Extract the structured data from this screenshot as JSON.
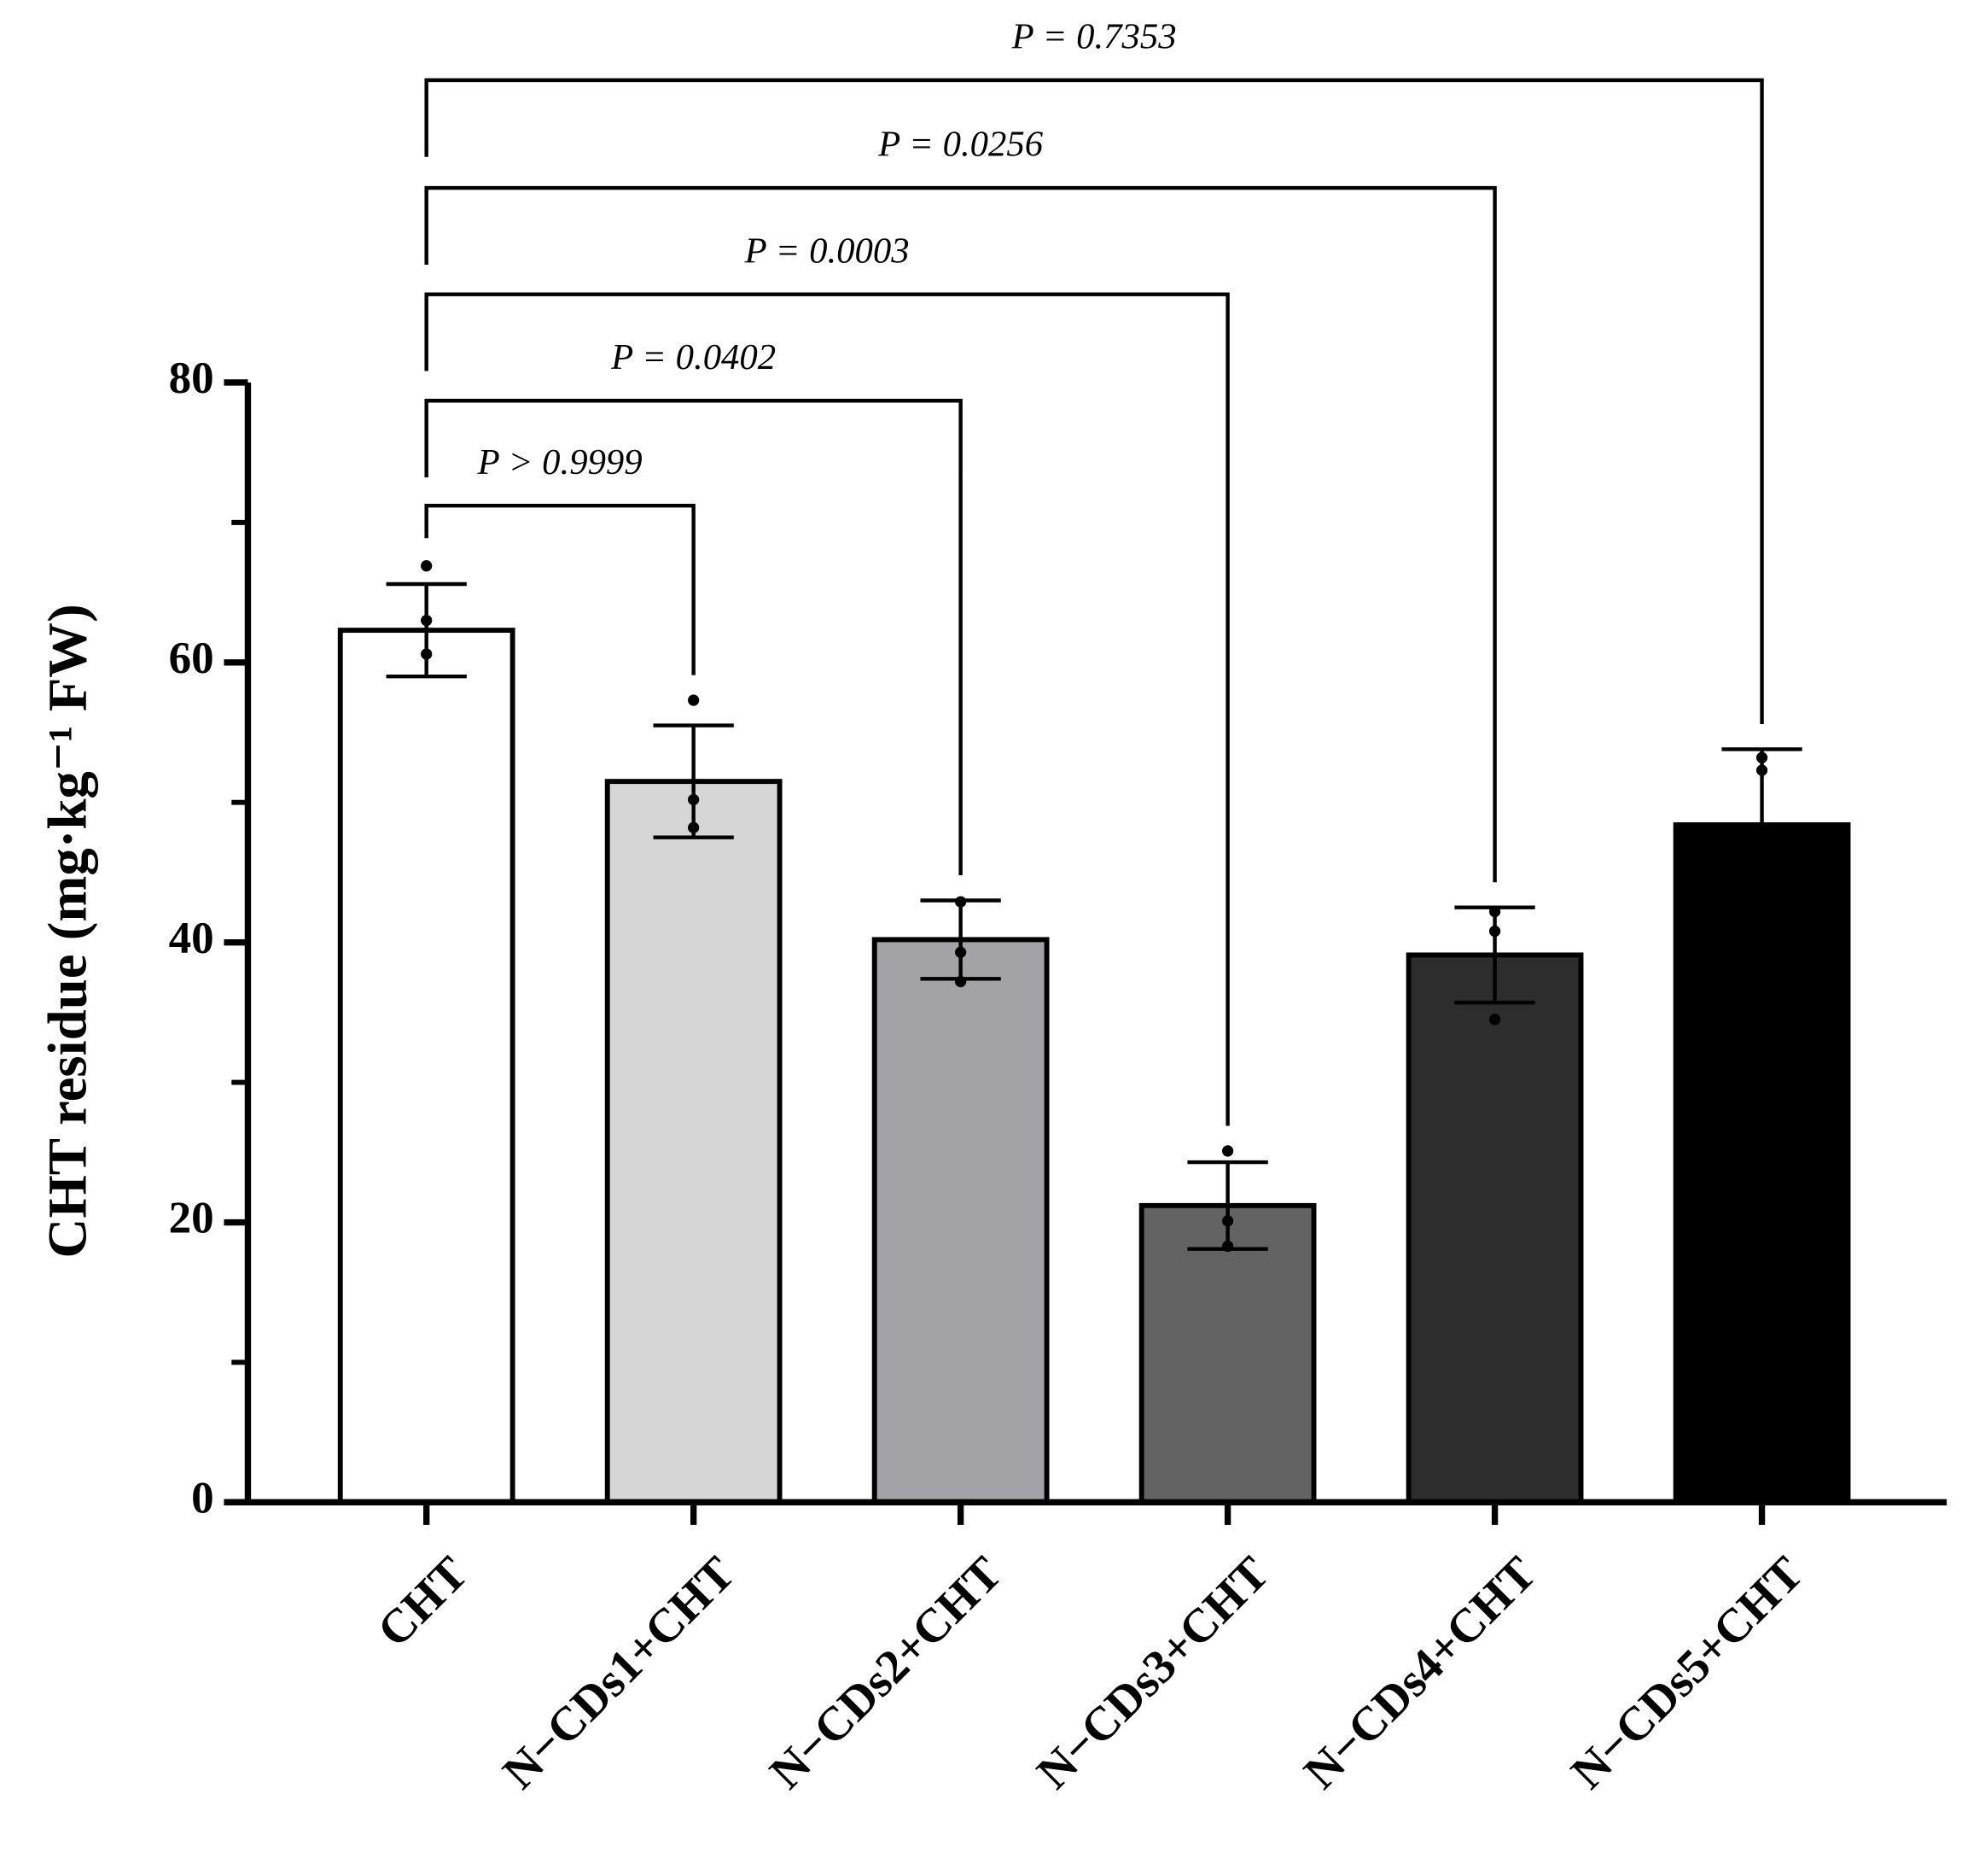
{
  "chart_data": {
    "type": "bar",
    "ylabel": "CHT residue (mg·kg⁻¹ FW)",
    "categories": [
      "CHT",
      "N−CDs1+CHT",
      "N−CDs2+CHT",
      "N−CDs3+CHT",
      "N−CDs4+CHT",
      "N−CDs5+CHT"
    ],
    "values": [
      62.3,
      51.5,
      40.2,
      21.2,
      39.1,
      48.4
    ],
    "errors": [
      3.3,
      4.0,
      2.8,
      3.1,
      3.4,
      5.4
    ],
    "points": [
      [
        66.9,
        63.0,
        60.6
      ],
      [
        57.3,
        50.2,
        48.2
      ],
      [
        42.9,
        39.3,
        37.2
      ],
      [
        25.1,
        20.1,
        18.3
      ],
      [
        42.2,
        40.8,
        34.5
      ],
      [
        53.2,
        52.3,
        39.7
      ]
    ],
    "colors": [
      "#ffffff",
      "#d6d6d6",
      "#a3a3a7",
      "#636363",
      "#2d2d2d",
      "#000000"
    ],
    "ylim": [
      0,
      80
    ],
    "yticks": [
      0,
      20,
      40,
      60,
      80
    ],
    "yminor": [
      10,
      30,
      50,
      70
    ],
    "comparisons": [
      {
        "from": "CHT",
        "to": "N−CDs1+CHT",
        "label": "P > 0.9999",
        "y": 71.2
      },
      {
        "from": "CHT",
        "to": "N−CDs2+CHT",
        "label": "P = 0.0402",
        "y": 78.7
      },
      {
        "from": "CHT",
        "to": "N−CDs3+CHT",
        "label": "P = 0.0003",
        "y": 86.3
      },
      {
        "from": "CHT",
        "to": "N−CDs4+CHT",
        "label": "P = 0.0256",
        "y": 93.9
      },
      {
        "from": "CHT",
        "to": "N−CDs5+CHT",
        "label": "P = 0.7353",
        "y": 101.6
      }
    ]
  }
}
